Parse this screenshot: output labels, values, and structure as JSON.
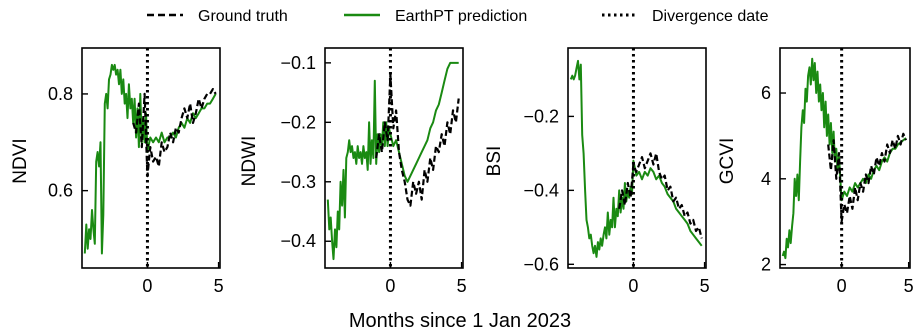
{
  "legend": [
    {
      "label": "Ground truth",
      "color": "#000000",
      "style": "dashed"
    },
    {
      "label": "EarthPT prediction",
      "color": "#1a8a12",
      "style": "solid"
    },
    {
      "label": "Divergence date",
      "color": "#000000",
      "style": "dotted"
    }
  ],
  "xlabel": "Months since 1 Jan 2023",
  "colors": {
    "ground_truth": "#000000",
    "prediction": "#1a8a12"
  },
  "chart_data": [
    {
      "type": "line",
      "ylabel": "NDVI",
      "xlim": [
        -4.6,
        5.1
      ],
      "ylim": [
        0.44,
        0.895
      ],
      "xticks": [
        0,
        5
      ],
      "xtick_labels": [
        "0",
        "5"
      ],
      "yticks": [
        0.6,
        0.8
      ],
      "ytick_labels": [
        "0.6",
        "0.8"
      ],
      "divergence_x": 0,
      "series": [
        {
          "name": "EarthPT prediction",
          "role": "prediction",
          "color": "#1a8a12",
          "x": [
            -4.4,
            -4.3,
            -4.2,
            -4.1,
            -4.0,
            -3.9,
            -3.8,
            -3.7,
            -3.6,
            -3.5,
            -3.4,
            -3.3,
            -3.2,
            -3.1,
            -3.0,
            -2.9,
            -2.8,
            -2.7,
            -2.6,
            -2.5,
            -2.4,
            -2.3,
            -2.2,
            -2.1,
            -2.0,
            -1.9,
            -1.8,
            -1.7,
            -1.6,
            -1.5,
            -1.4,
            -1.3,
            -1.2,
            -1.1,
            -1.0,
            -0.9,
            -0.8,
            -0.7,
            -0.6,
            -0.5,
            -0.4,
            -0.3,
            -0.2,
            -0.1,
            0.0,
            0.2,
            0.4,
            0.6,
            0.8,
            1.0,
            1.2,
            1.4,
            1.6,
            1.8,
            2.0,
            2.2,
            2.4,
            2.6,
            2.8,
            3.0,
            3.2,
            3.4,
            3.6,
            3.8,
            4.0,
            4.2,
            4.4,
            4.6,
            4.8
          ],
          "y": [
            0.47,
            0.53,
            0.48,
            0.52,
            0.5,
            0.56,
            0.52,
            0.49,
            0.66,
            0.68,
            0.65,
            0.7,
            0.47,
            0.55,
            0.78,
            0.8,
            0.77,
            0.83,
            0.84,
            0.86,
            0.85,
            0.86,
            0.84,
            0.85,
            0.82,
            0.85,
            0.8,
            0.83,
            0.78,
            0.8,
            0.75,
            0.82,
            0.77,
            0.79,
            0.74,
            0.79,
            0.71,
            0.77,
            0.69,
            0.8,
            0.7,
            0.75,
            0.7,
            0.76,
            0.68,
            0.71,
            0.7,
            0.71,
            0.7,
            0.72,
            0.7,
            0.71,
            0.71,
            0.72,
            0.71,
            0.73,
            0.74,
            0.73,
            0.75,
            0.74,
            0.76,
            0.75,
            0.76,
            0.77,
            0.77,
            0.78,
            0.78,
            0.79,
            0.8
          ]
        },
        {
          "name": "Ground truth",
          "role": "ground_truth",
          "color": "#000000",
          "x": [
            -1.0,
            -0.8,
            -0.6,
            -0.4,
            -0.2,
            0.0,
            0.2,
            0.4,
            0.6,
            0.8,
            1.0,
            1.2,
            1.4,
            1.6,
            1.8,
            2.0,
            2.2,
            2.4,
            2.6,
            2.8,
            3.0,
            3.2,
            3.4,
            3.6,
            3.8,
            4.0,
            4.2,
            4.4,
            4.6,
            4.8
          ],
          "y": [
            0.74,
            0.72,
            0.78,
            0.69,
            0.8,
            0.63,
            0.69,
            0.66,
            0.67,
            0.65,
            0.7,
            0.68,
            0.69,
            0.72,
            0.7,
            0.73,
            0.72,
            0.75,
            0.77,
            0.75,
            0.78,
            0.74,
            0.76,
            0.79,
            0.77,
            0.79,
            0.8,
            0.8,
            0.81,
            0.8
          ]
        }
      ]
    },
    {
      "type": "line",
      "ylabel": "NDWI",
      "xlim": [
        -4.6,
        5.1
      ],
      "ylim": [
        -0.445,
        -0.075
      ],
      "xticks": [
        0,
        5
      ],
      "xtick_labels": [
        "0",
        "5"
      ],
      "yticks": [
        -0.4,
        -0.3,
        -0.2,
        -0.1
      ],
      "ytick_labels": [
        "−0.4",
        "−0.3",
        "−0.2",
        "−0.1"
      ],
      "divergence_x": 0,
      "series": [
        {
          "name": "EarthPT prediction",
          "role": "prediction",
          "color": "#1a8a12",
          "x": [
            -4.4,
            -4.3,
            -4.2,
            -4.1,
            -4.0,
            -3.9,
            -3.8,
            -3.7,
            -3.6,
            -3.5,
            -3.4,
            -3.3,
            -3.2,
            -3.1,
            -3.0,
            -2.9,
            -2.8,
            -2.7,
            -2.6,
            -2.5,
            -2.4,
            -2.3,
            -2.2,
            -2.1,
            -2.0,
            -1.9,
            -1.8,
            -1.7,
            -1.6,
            -1.5,
            -1.4,
            -1.3,
            -1.2,
            -1.1,
            -1.0,
            -0.9,
            -0.8,
            -0.7,
            -0.6,
            -0.5,
            -0.4,
            -0.3,
            -0.2,
            -0.1,
            0.0,
            0.2,
            0.4,
            0.6,
            0.8,
            1.0,
            1.2,
            1.4,
            1.6,
            1.8,
            2.0,
            2.2,
            2.4,
            2.6,
            2.8,
            3.0,
            3.2,
            3.4,
            3.6,
            3.8,
            4.0,
            4.2,
            4.4,
            4.6,
            4.8
          ],
          "y": [
            -0.33,
            -0.38,
            -0.36,
            -0.4,
            -0.43,
            -0.38,
            -0.41,
            -0.35,
            -0.38,
            -0.3,
            -0.34,
            -0.28,
            -0.36,
            -0.26,
            -0.25,
            -0.23,
            -0.25,
            -0.24,
            -0.26,
            -0.25,
            -0.27,
            -0.24,
            -0.26,
            -0.25,
            -0.27,
            -0.24,
            -0.26,
            -0.25,
            -0.28,
            -0.2,
            -0.27,
            -0.23,
            -0.26,
            -0.13,
            -0.27,
            -0.22,
            -0.25,
            -0.22,
            -0.24,
            -0.2,
            -0.24,
            -0.2,
            -0.24,
            -0.21,
            -0.22,
            -0.24,
            -0.23,
            -0.25,
            -0.27,
            -0.29,
            -0.3,
            -0.29,
            -0.28,
            -0.27,
            -0.26,
            -0.25,
            -0.24,
            -0.23,
            -0.21,
            -0.2,
            -0.18,
            -0.17,
            -0.15,
            -0.13,
            -0.11,
            -0.1,
            -0.1,
            -0.1,
            -0.1
          ]
        },
        {
          "name": "Ground truth",
          "role": "ground_truth",
          "color": "#000000",
          "x": [
            -1.0,
            -0.8,
            -0.6,
            -0.4,
            -0.2,
            0.0,
            0.2,
            0.4,
            0.6,
            0.8,
            1.0,
            1.2,
            1.4,
            1.6,
            1.8,
            2.0,
            2.2,
            2.4,
            2.6,
            2.8,
            3.0,
            3.2,
            3.4,
            3.6,
            3.8,
            4.0,
            4.2,
            4.4,
            4.6,
            4.8
          ],
          "y": [
            -0.26,
            -0.22,
            -0.25,
            -0.2,
            -0.23,
            -0.12,
            -0.21,
            -0.18,
            -0.25,
            -0.28,
            -0.3,
            -0.33,
            -0.34,
            -0.3,
            -0.32,
            -0.3,
            -0.33,
            -0.28,
            -0.3,
            -0.26,
            -0.28,
            -0.24,
            -0.25,
            -0.22,
            -0.24,
            -0.2,
            -0.22,
            -0.18,
            -0.2,
            -0.16
          ]
        }
      ]
    },
    {
      "type": "line",
      "ylabel": "BSI",
      "xlim": [
        -4.6,
        5.1
      ],
      "ylim": [
        -0.61,
        -0.015
      ],
      "xticks": [
        0,
        5
      ],
      "xtick_labels": [
        "0",
        "5"
      ],
      "yticks": [
        -0.6,
        -0.4,
        -0.2
      ],
      "ytick_labels": [
        "−0.6",
        "−0.4",
        "−0.2"
      ],
      "divergence_x": 0,
      "series": [
        {
          "name": "EarthPT prediction",
          "role": "prediction",
          "color": "#1a8a12",
          "x": [
            -4.4,
            -4.3,
            -4.2,
            -4.1,
            -4.0,
            -3.9,
            -3.8,
            -3.7,
            -3.6,
            -3.5,
            -3.4,
            -3.3,
            -3.2,
            -3.1,
            -3.0,
            -2.9,
            -2.8,
            -2.7,
            -2.6,
            -2.5,
            -2.4,
            -2.3,
            -2.2,
            -2.1,
            -2.0,
            -1.9,
            -1.8,
            -1.7,
            -1.6,
            -1.5,
            -1.4,
            -1.3,
            -1.2,
            -1.1,
            -1.0,
            -0.9,
            -0.8,
            -0.7,
            -0.6,
            -0.5,
            -0.4,
            -0.3,
            -0.2,
            -0.1,
            0.0,
            0.2,
            0.4,
            0.6,
            0.8,
            1.0,
            1.2,
            1.4,
            1.6,
            1.8,
            2.0,
            2.2,
            2.4,
            2.6,
            2.8,
            3.0,
            3.2,
            3.4,
            3.6,
            3.8,
            4.0,
            4.2,
            4.4,
            4.6,
            4.8
          ],
          "y": [
            -0.1,
            -0.09,
            -0.1,
            -0.09,
            -0.07,
            -0.05,
            -0.1,
            -0.06,
            -0.25,
            -0.3,
            -0.4,
            -0.48,
            -0.5,
            -0.53,
            -0.52,
            -0.55,
            -0.57,
            -0.55,
            -0.58,
            -0.54,
            -0.56,
            -0.53,
            -0.55,
            -0.52,
            -0.5,
            -0.53,
            -0.46,
            -0.52,
            -0.48,
            -0.5,
            -0.42,
            -0.5,
            -0.45,
            -0.47,
            -0.4,
            -0.46,
            -0.42,
            -0.45,
            -0.38,
            -0.43,
            -0.4,
            -0.42,
            -0.39,
            -0.41,
            -0.32,
            -0.36,
            -0.35,
            -0.37,
            -0.35,
            -0.36,
            -0.34,
            -0.35,
            -0.37,
            -0.36,
            -0.38,
            -0.39,
            -0.41,
            -0.42,
            -0.43,
            -0.45,
            -0.46,
            -0.47,
            -0.48,
            -0.49,
            -0.51,
            -0.52,
            -0.53,
            -0.54,
            -0.55
          ]
        },
        {
          "name": "Ground truth",
          "role": "ground_truth",
          "color": "#000000",
          "x": [
            -1.0,
            -0.8,
            -0.6,
            -0.4,
            -0.2,
            0.0,
            0.2,
            0.4,
            0.6,
            0.8,
            1.0,
            1.2,
            1.4,
            1.6,
            1.8,
            2.0,
            2.2,
            2.4,
            2.6,
            2.8,
            3.0,
            3.2,
            3.4,
            3.6,
            3.8,
            4.0,
            4.2,
            4.4,
            4.6,
            4.8
          ],
          "y": [
            -0.45,
            -0.4,
            -0.44,
            -0.38,
            -0.42,
            -0.33,
            -0.35,
            -0.33,
            -0.31,
            -0.34,
            -0.32,
            -0.3,
            -0.33,
            -0.3,
            -0.35,
            -0.37,
            -0.36,
            -0.4,
            -0.39,
            -0.43,
            -0.42,
            -0.45,
            -0.44,
            -0.47,
            -0.46,
            -0.49,
            -0.48,
            -0.51,
            -0.5,
            -0.53
          ]
        }
      ]
    },
    {
      "type": "line",
      "ylabel": "GCVI",
      "xlim": [
        -4.6,
        5.1
      ],
      "ylim": [
        1.92,
        7.05
      ],
      "xticks": [
        0,
        5
      ],
      "xtick_labels": [
        "0",
        "5"
      ],
      "yticks": [
        2,
        4,
        6
      ],
      "ytick_labels": [
        "2",
        "4",
        "6"
      ],
      "divergence_x": 0,
      "series": [
        {
          "name": "EarthPT prediction",
          "role": "prediction",
          "color": "#1a8a12",
          "x": [
            -4.4,
            -4.3,
            -4.2,
            -4.1,
            -4.0,
            -3.9,
            -3.8,
            -3.7,
            -3.6,
            -3.5,
            -3.4,
            -3.3,
            -3.2,
            -3.1,
            -3.0,
            -2.9,
            -2.8,
            -2.7,
            -2.6,
            -2.5,
            -2.4,
            -2.3,
            -2.2,
            -2.1,
            -2.0,
            -1.9,
            -1.8,
            -1.7,
            -1.6,
            -1.5,
            -1.4,
            -1.3,
            -1.2,
            -1.1,
            -1.0,
            -0.9,
            -0.8,
            -0.7,
            -0.6,
            -0.5,
            -0.4,
            -0.3,
            -0.2,
            -0.1,
            0.0,
            0.2,
            0.4,
            0.6,
            0.8,
            1.0,
            1.2,
            1.4,
            1.6,
            1.8,
            2.0,
            2.2,
            2.4,
            2.6,
            2.8,
            3.0,
            3.2,
            3.4,
            3.6,
            3.8,
            4.0,
            4.2,
            4.4,
            4.6,
            4.8
          ],
          "y": [
            2.2,
            2.3,
            2.15,
            2.6,
            2.4,
            2.8,
            2.5,
            2.9,
            3.2,
            4.0,
            3.6,
            4.1,
            3.5,
            4.4,
            5.2,
            5.6,
            5.3,
            6.1,
            5.8,
            6.4,
            6.6,
            6.2,
            6.8,
            6.3,
            6.7,
            6.0,
            6.5,
            5.8,
            6.2,
            5.6,
            6.0,
            5.2,
            5.8,
            5.0,
            5.5,
            4.8,
            5.3,
            4.6,
            5.1,
            4.4,
            4.7,
            4.2,
            4.5,
            4.0,
            3.5,
            3.7,
            3.6,
            3.8,
            3.7,
            3.9,
            3.8,
            3.9,
            4.0,
            3.9,
            4.1,
            4.0,
            4.2,
            4.3,
            4.2,
            4.4,
            4.5,
            4.4,
            4.6,
            4.7,
            4.7,
            4.8,
            4.85,
            4.9,
            4.95
          ]
        },
        {
          "name": "Ground truth",
          "role": "ground_truth",
          "color": "#000000",
          "x": [
            -1.0,
            -0.8,
            -0.6,
            -0.4,
            -0.2,
            0.0,
            0.2,
            0.4,
            0.6,
            0.8,
            1.0,
            1.2,
            1.4,
            1.6,
            1.8,
            2.0,
            2.2,
            2.4,
            2.6,
            2.8,
            3.0,
            3.2,
            3.4,
            3.6,
            3.8,
            4.0,
            4.2,
            4.4,
            4.6,
            4.8
          ],
          "y": [
            4.8,
            4.2,
            4.9,
            4.0,
            4.6,
            3.0,
            3.4,
            3.2,
            3.6,
            3.3,
            3.8,
            3.5,
            3.9,
            3.7,
            4.1,
            3.9,
            4.3,
            4.1,
            4.5,
            4.3,
            4.6,
            4.4,
            4.8,
            4.6,
            4.9,
            4.7,
            5.0,
            4.8,
            5.05,
            4.9
          ]
        }
      ]
    }
  ]
}
